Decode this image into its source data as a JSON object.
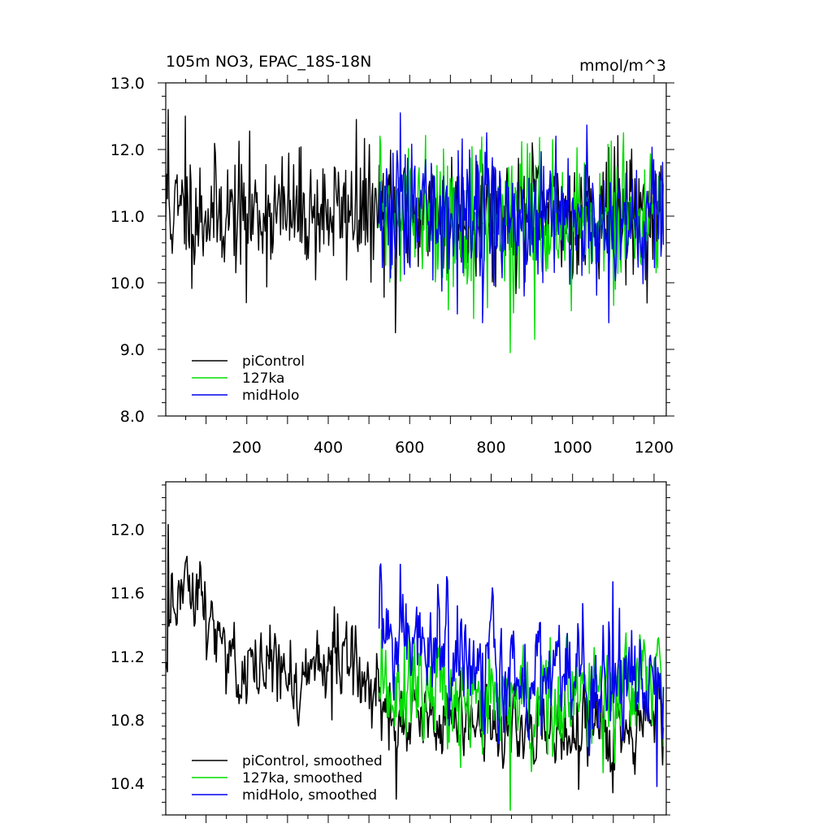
{
  "title": "105m NO3, EPAC_18S-18N",
  "units": "mmol/m^3",
  "chart_data": [
    {
      "type": "line",
      "xlim": [
        1,
        1230
      ],
      "ylim": [
        8.0,
        13.0
      ],
      "yticks": [
        8,
        9,
        10,
        11,
        12,
        13
      ],
      "ytick_labels": [
        "8.0",
        "9.0",
        "10.0",
        "11.0",
        "12.0",
        "13.0"
      ],
      "xticks": [
        200,
        400,
        600,
        800,
        1000,
        1200
      ],
      "xtick_labels": [
        "200",
        "400",
        "600",
        "800",
        "1000",
        "1200"
      ],
      "colors": [
        "#000000",
        "#00dd00",
        "#0000ee"
      ],
      "series": [
        {
          "name": "piControl",
          "start": 1,
          "end": 1223,
          "mean": 11.05,
          "std": 0.45,
          "seed": 11,
          "extremes": [
            [
              8,
              12.6
            ],
            [
              200,
              9.7
            ],
            [
              565,
              9.25
            ],
            [
              470,
              12.45
            ],
            [
              50,
              12.5
            ]
          ]
        },
        {
          "name": "127ka",
          "start": 525,
          "end": 1223,
          "mean": 10.95,
          "std": 0.5,
          "seed": 22,
          "extremes": [
            [
              848,
              8.95
            ],
            [
              908,
              9.15
            ],
            [
              1125,
              12.25
            ],
            [
              528,
              12.2
            ]
          ]
        },
        {
          "name": "midHolo",
          "start": 525,
          "end": 1223,
          "mean": 11.0,
          "std": 0.5,
          "seed": 33,
          "extremes": [
            [
              578,
              12.55
            ],
            [
              780,
              9.4
            ],
            [
              1090,
              9.4
            ],
            [
              790,
              12.25
            ],
            [
              960,
              12.2
            ]
          ]
        }
      ],
      "legend": [
        "piControl",
        "127ka",
        "midHolo"
      ]
    },
    {
      "type": "line",
      "xlim": [
        1,
        1230
      ],
      "ylim": [
        10.2,
        12.3
      ],
      "yticks": [
        10.4,
        10.8,
        11.2,
        11.6,
        12.0
      ],
      "ytick_labels": [
        "10.4",
        "10.8",
        "11.2",
        "11.6",
        "12.0"
      ],
      "xticks": [
        200,
        400,
        600,
        800,
        1000,
        1200
      ],
      "colors": [
        "#000000",
        "#00dd00",
        "#0000ee"
      ],
      "series": [
        {
          "name": "piControl, smoothed",
          "start": 1,
          "end": 1223,
          "seed": 44,
          "anchors": [
            [
              1,
              11.15
            ],
            [
              25,
              11.55
            ],
            [
              60,
              11.6
            ],
            [
              110,
              11.45
            ],
            [
              180,
              11.1
            ],
            [
              250,
              11.15
            ],
            [
              320,
              11.0
            ],
            [
              400,
              11.25
            ],
            [
              460,
              11.3
            ],
            [
              520,
              10.95
            ],
            [
              560,
              10.75
            ],
            [
              650,
              10.8
            ],
            [
              800,
              10.75
            ],
            [
              1000,
              10.75
            ],
            [
              1150,
              10.7
            ],
            [
              1223,
              10.95
            ]
          ],
          "std": 0.14,
          "extremes": [
            [
              8,
              12.03
            ],
            [
              568,
              10.3
            ],
            [
              410,
              10.8
            ]
          ]
        },
        {
          "name": "127ka, smoothed",
          "start": 525,
          "end": 1223,
          "seed": 55,
          "anchors": [
            [
              525,
              11.0
            ],
            [
              650,
              10.95
            ],
            [
              800,
              10.85
            ],
            [
              1000,
              10.95
            ],
            [
              1223,
              11.0
            ]
          ],
          "std": 0.18,
          "extremes": [
            [
              848,
              10.23
            ],
            [
              725,
              10.5
            ]
          ]
        },
        {
          "name": "midHolo, smoothed",
          "start": 525,
          "end": 1223,
          "seed": 66,
          "anchors": [
            [
              525,
              11.4
            ],
            [
              650,
              11.2
            ],
            [
              800,
              11.1
            ],
            [
              1000,
              11.05
            ],
            [
              1223,
              11.05
            ]
          ],
          "std": 0.18,
          "extremes": [
            [
              578,
              11.78
            ],
            [
              1208,
              10.38
            ],
            [
              1100,
              11.67
            ]
          ]
        }
      ],
      "legend": [
        "piControl, smoothed",
        "127ka, smoothed",
        "midHolo, smoothed"
      ]
    }
  ]
}
